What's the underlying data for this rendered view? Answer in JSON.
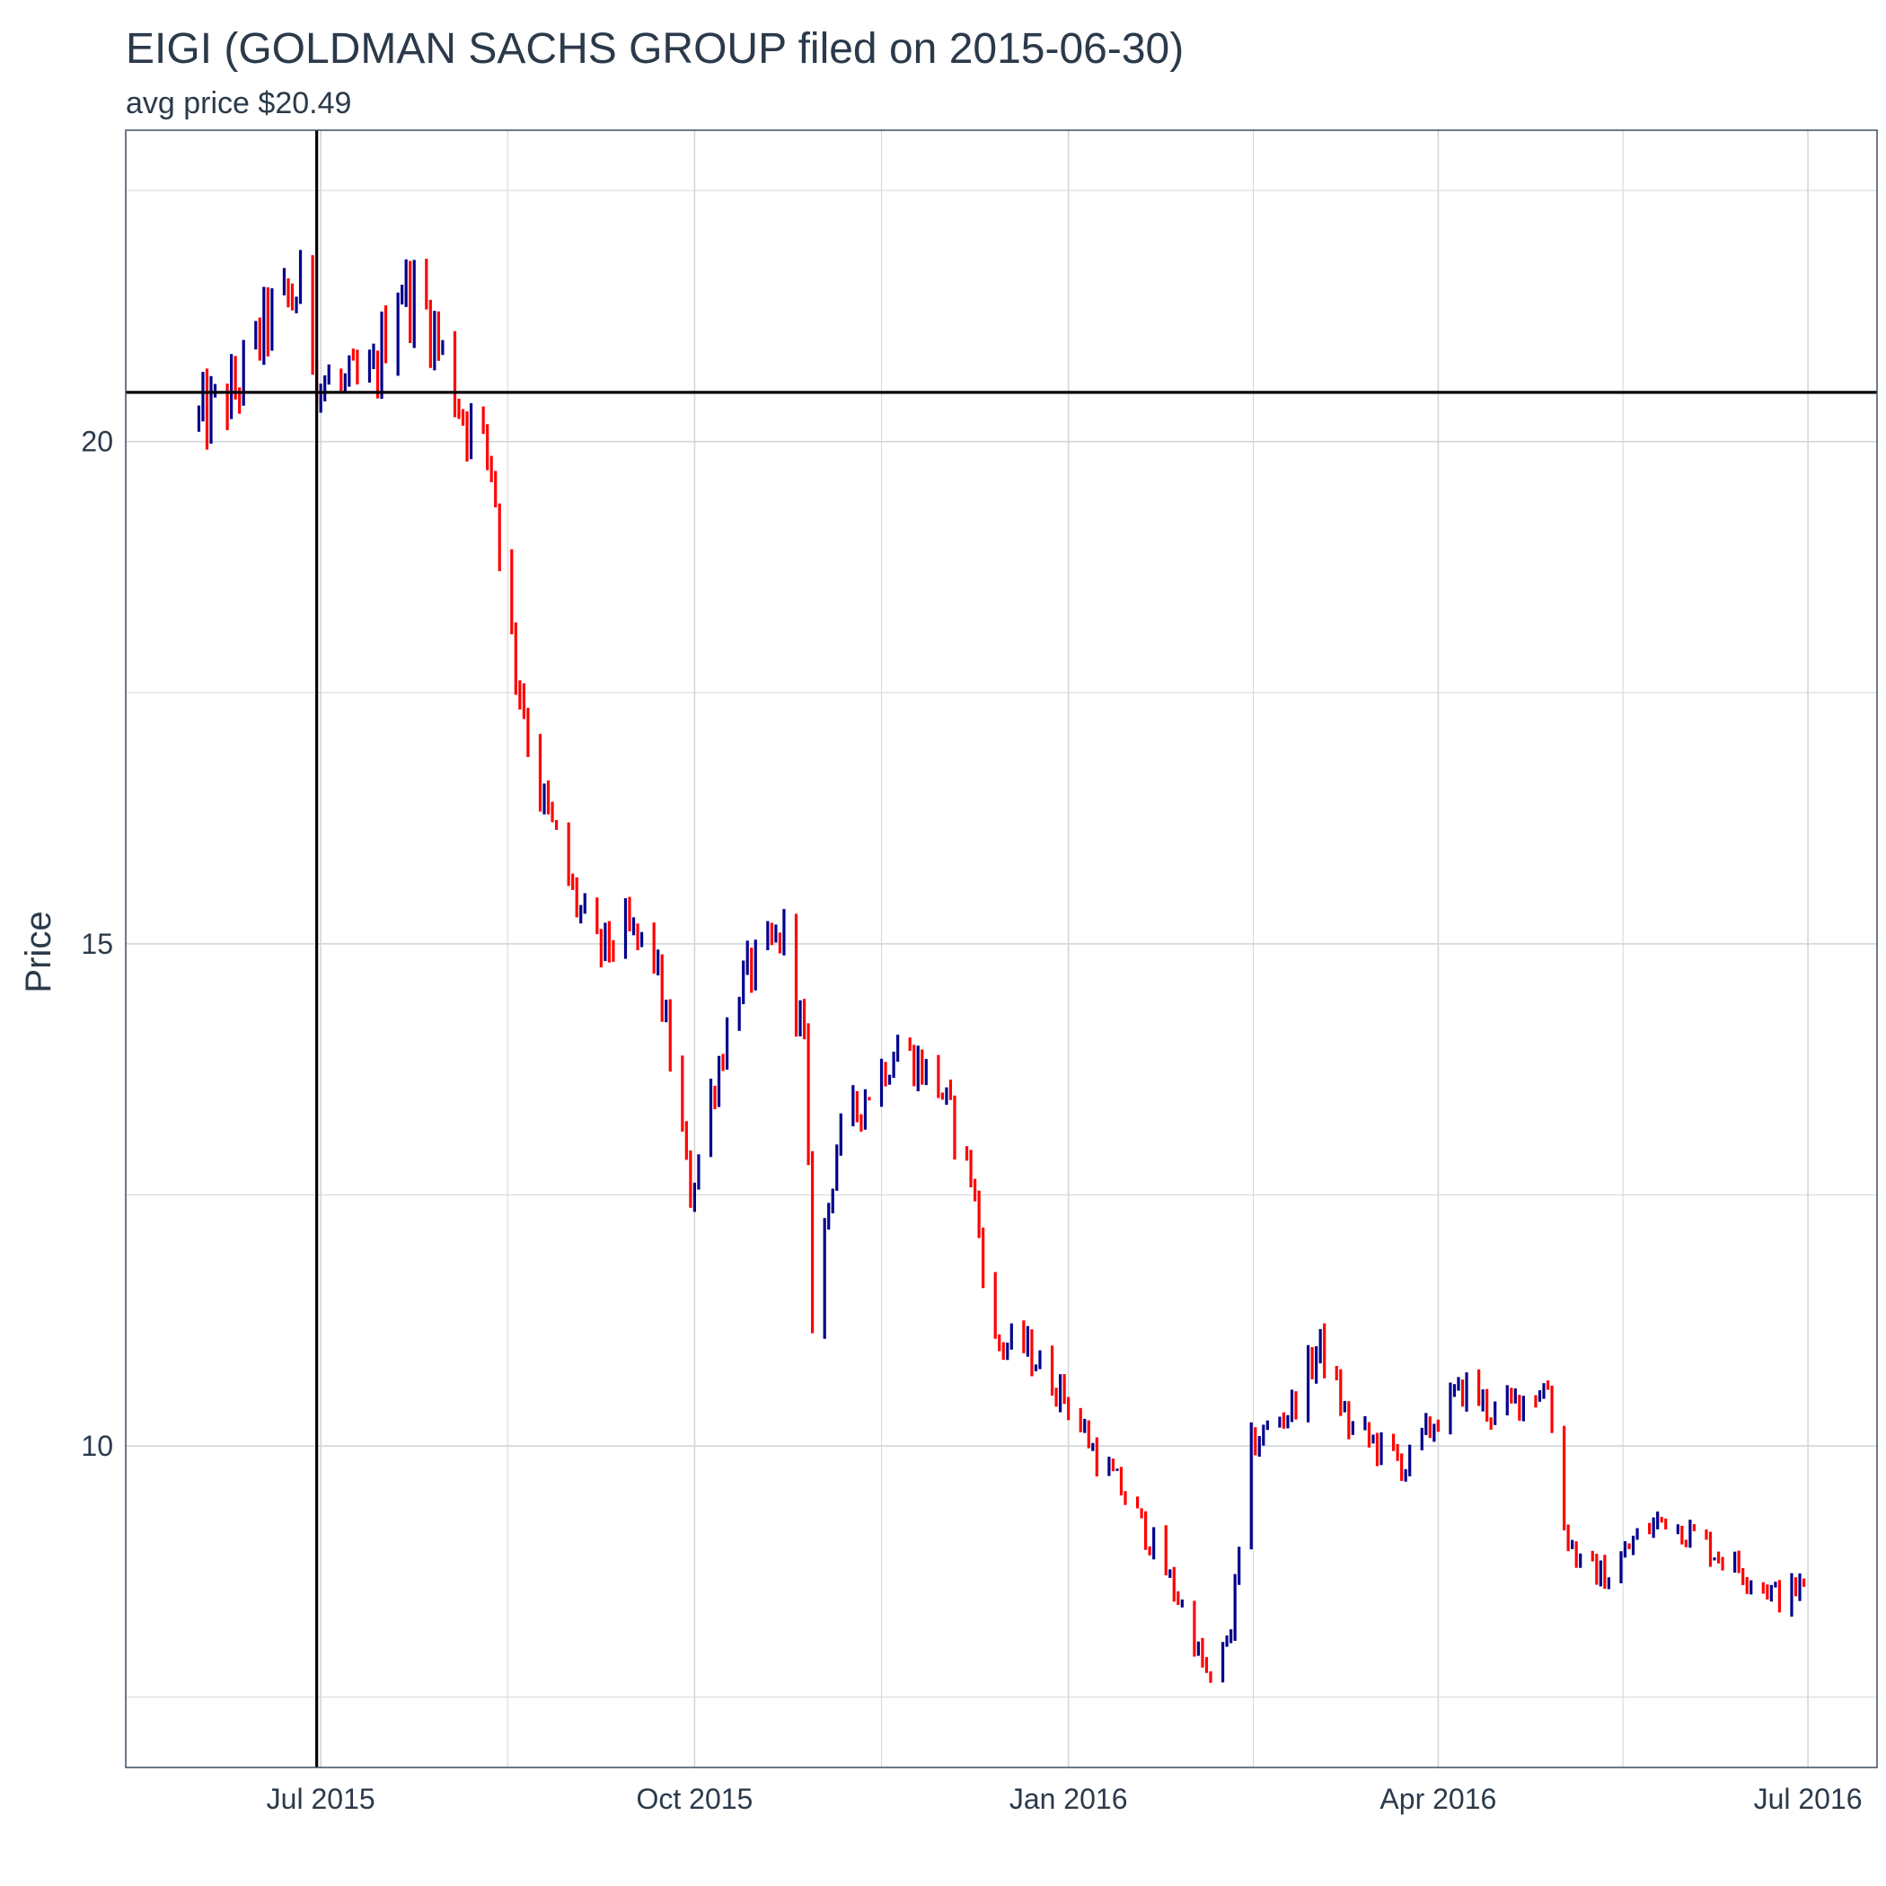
{
  "chart_data": {
    "type": "line",
    "title": "EIGI (GOLDMAN SACHS GROUP filed on 2015-06-30)",
    "subtitle": "avg price $20.49",
    "xlabel": "",
    "ylabel": "Price",
    "x_ticks": [
      {
        "date": "2015-07-01",
        "label": "Jul 2015"
      },
      {
        "date": "2015-10-01",
        "label": "Oct 2015"
      },
      {
        "date": "2016-01-01",
        "label": "Jan 2016"
      },
      {
        "date": "2016-04-01",
        "label": "Apr 2016"
      },
      {
        "date": "2016-07-01",
        "label": "Jul 2016"
      }
    ],
    "y_ticks": [
      10,
      15,
      20
    ],
    "xlim": [
      "2015-05-14",
      "2016-07-18"
    ],
    "ylim": [
      6.8,
      23.1
    ],
    "grid": true,
    "avg_price": 20.49,
    "filing_date": "2015-06-30",
    "colors": {
      "up": "#00008b",
      "down": "#ff0000",
      "reference": "#000000",
      "grid": "#d3d6da"
    },
    "series": [
      {
        "kind": "price-bars",
        "anchors": [
          [
            "2015-06-01",
            20.2
          ],
          [
            "2015-06-10",
            20.5
          ],
          [
            "2015-06-18",
            21.2
          ],
          [
            "2015-06-26",
            21.5
          ],
          [
            "2015-07-01",
            20.6
          ],
          [
            "2015-07-08",
            20.5
          ],
          [
            "2015-07-14",
            20.6
          ],
          [
            "2015-07-20",
            21.6
          ],
          [
            "2015-07-27",
            21.3
          ],
          [
            "2015-08-05",
            20.3
          ],
          [
            "2015-08-12",
            19.8
          ],
          [
            "2015-08-17",
            18.0
          ],
          [
            "2015-08-24",
            16.5
          ],
          [
            "2015-09-01",
            15.5
          ],
          [
            "2015-09-07",
            14.9
          ],
          [
            "2015-09-14",
            15.1
          ],
          [
            "2015-09-21",
            14.9
          ],
          [
            "2015-09-25",
            13.9
          ],
          [
            "2015-09-30",
            12.5
          ],
          [
            "2015-10-05",
            13.5
          ],
          [
            "2015-10-12",
            14.6
          ],
          [
            "2015-10-19",
            14.9
          ],
          [
            "2015-10-23",
            15.1
          ],
          [
            "2015-10-28",
            14.0
          ],
          [
            "2015-10-30",
            11.3
          ],
          [
            "2015-11-05",
            13.0
          ],
          [
            "2015-11-12",
            13.5
          ],
          [
            "2015-11-20",
            14.0
          ],
          [
            "2015-11-30",
            13.6
          ],
          [
            "2015-12-08",
            12.7
          ],
          [
            "2015-12-14",
            11.0
          ],
          [
            "2015-12-21",
            11.0
          ],
          [
            "2015-12-31",
            10.5
          ],
          [
            "2016-01-08",
            9.9
          ],
          [
            "2016-01-15",
            9.5
          ],
          [
            "2016-01-22",
            9.0
          ],
          [
            "2016-01-29",
            8.4
          ],
          [
            "2016-02-05",
            7.6
          ],
          [
            "2016-02-10",
            8.2
          ],
          [
            "2016-02-15",
            10.0
          ],
          [
            "2016-02-25",
            10.4
          ],
          [
            "2016-03-03",
            11.0
          ],
          [
            "2016-03-10",
            10.2
          ],
          [
            "2016-03-17",
            10.0
          ],
          [
            "2016-03-24",
            9.8
          ],
          [
            "2016-04-01",
            10.3
          ],
          [
            "2016-04-08",
            10.6
          ],
          [
            "2016-04-15",
            10.3
          ],
          [
            "2016-04-22",
            10.5
          ],
          [
            "2016-04-28",
            10.6
          ],
          [
            "2016-05-02",
            9.2
          ],
          [
            "2016-05-06",
            8.8
          ],
          [
            "2016-05-13",
            8.7
          ],
          [
            "2016-05-20",
            9.1
          ],
          [
            "2016-05-27",
            9.3
          ],
          [
            "2016-06-03",
            9.1
          ],
          [
            "2016-06-10",
            8.9
          ],
          [
            "2016-06-17",
            8.7
          ],
          [
            "2016-06-24",
            8.5
          ],
          [
            "2016-06-30",
            8.6
          ]
        ]
      }
    ]
  }
}
